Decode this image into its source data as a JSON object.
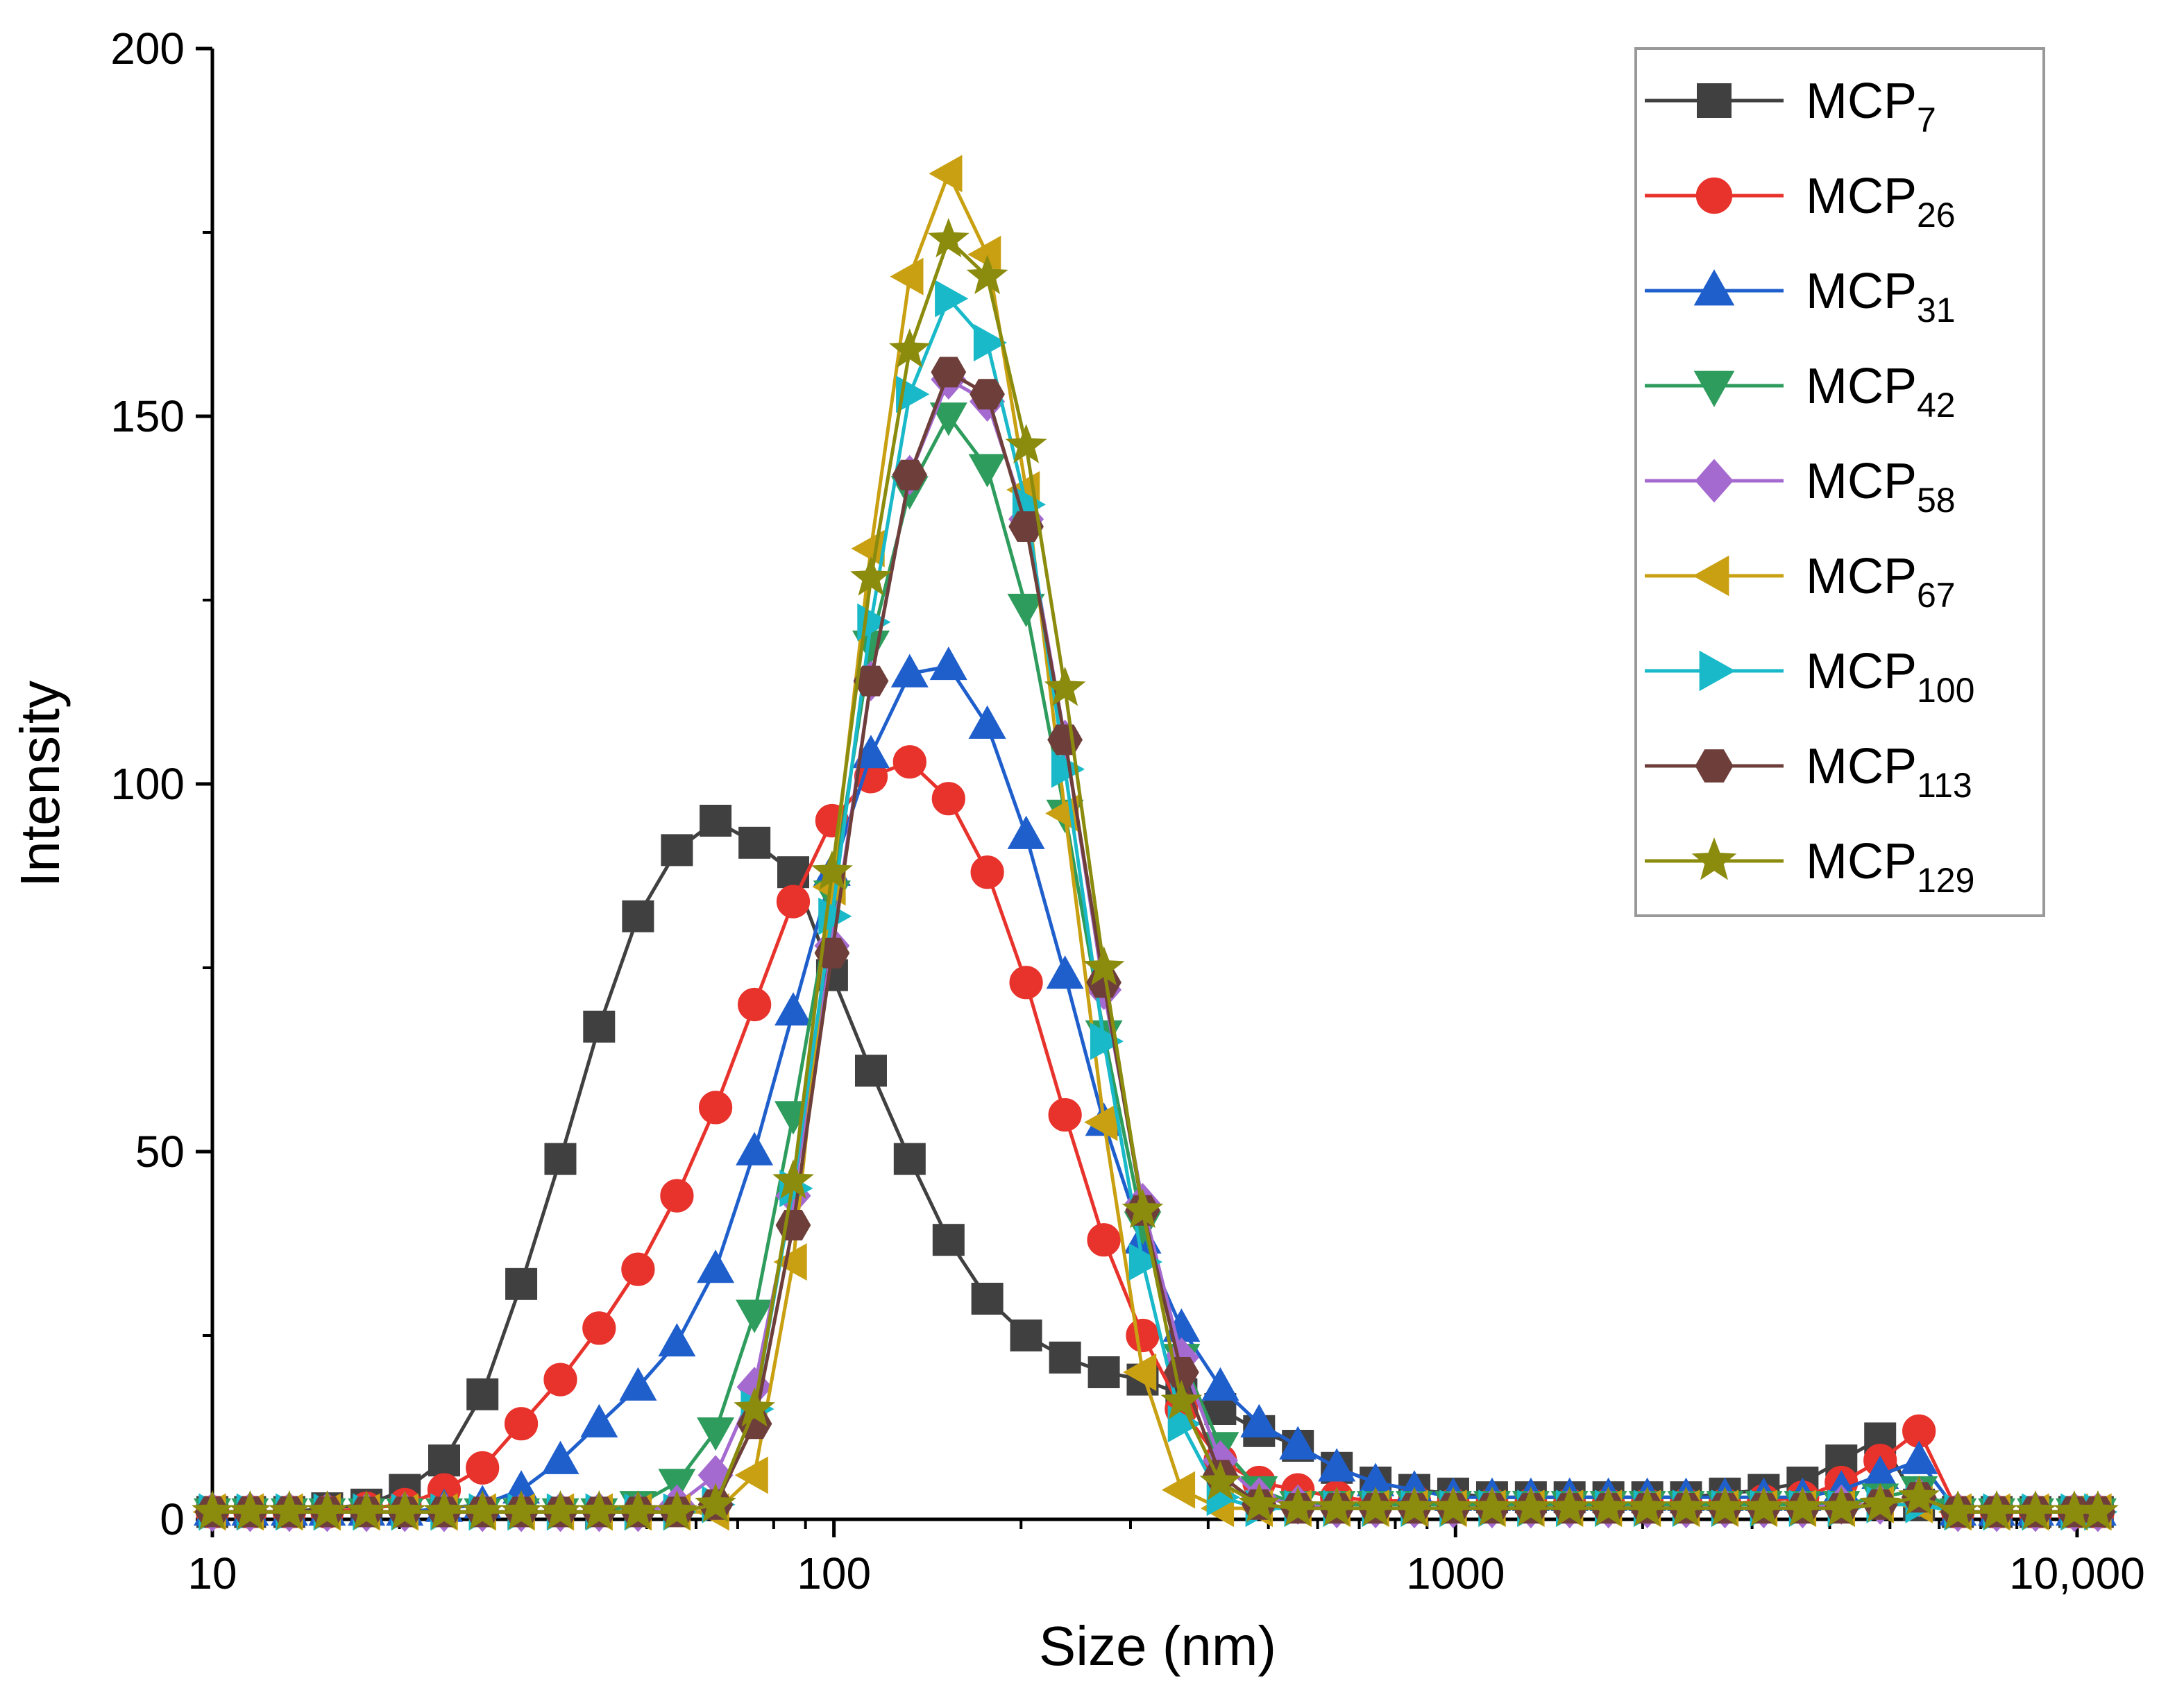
{
  "chart_data": {
    "type": "scatter",
    "title": "",
    "xlabel": "Size (nm)",
    "ylabel": "Intensity",
    "x_scale": "log",
    "xlim": [
      10,
      11000
    ],
    "ylim": [
      0,
      200
    ],
    "grid": false,
    "legend_position": "top-right",
    "x_ticks": [
      {
        "value": 10,
        "label": "10"
      },
      {
        "value": 100,
        "label": "100"
      },
      {
        "value": 1000,
        "label": "1000"
      },
      {
        "value": 10000,
        "label": "10,000"
      }
    ],
    "y_ticks": [
      {
        "value": 0,
        "label": "0"
      },
      {
        "value": 50,
        "label": "50"
      },
      {
        "value": 100,
        "label": "100"
      },
      {
        "value": 150,
        "label": "150"
      },
      {
        "value": 200,
        "label": "200"
      }
    ],
    "series": [
      {
        "name": "MCP",
        "sub": "7",
        "color": "#404040",
        "marker": "square",
        "x": [
          10,
          11.5,
          13.3,
          15.3,
          17.7,
          20.4,
          23.6,
          27.2,
          31.4,
          36.3,
          41.9,
          48.4,
          55.9,
          64.5,
          74.5,
          86,
          99.3,
          114.7,
          132.4,
          152.9,
          176.5,
          203.8,
          235.4,
          271.8,
          313.8,
          362.3,
          418.4,
          483.1,
          557.8,
          644.1,
          743.7,
          858.7,
          991.5,
          1145,
          1322,
          1526,
          1762,
          2035,
          2349,
          2713,
          3132,
          3617,
          4176,
          4822,
          5568,
          6430,
          7424,
          8572,
          9898,
          10800
        ],
        "y": [
          1,
          1,
          1,
          1.5,
          2,
          4,
          8,
          17,
          32,
          49,
          67,
          82,
          91,
          95,
          92,
          88,
          74,
          61,
          49,
          38,
          30,
          25,
          22,
          20,
          19,
          17,
          15,
          12,
          10,
          7,
          5,
          4,
          3.5,
          3,
          3,
          3,
          3,
          3,
          3,
          3.5,
          4,
          5,
          8,
          11,
          2,
          1,
          1,
          1,
          1,
          1
        ]
      },
      {
        "name": "MCP",
        "sub": "26",
        "color": "#e8322c",
        "marker": "circle",
        "x": [
          10,
          11.5,
          13.3,
          15.3,
          17.7,
          20.4,
          23.6,
          27.2,
          31.4,
          36.3,
          41.9,
          48.4,
          55.9,
          64.5,
          74.5,
          86,
          99.3,
          114.7,
          132.4,
          152.9,
          176.5,
          203.8,
          235.4,
          271.8,
          313.8,
          362.3,
          418.4,
          483.1,
          557.8,
          644.1,
          743.7,
          858.7,
          991.5,
          1145,
          1322,
          1526,
          1762,
          2035,
          2349,
          2713,
          3132,
          3617,
          4176,
          4822,
          5568,
          6430,
          7424,
          8572,
          9898,
          10800
        ],
        "y": [
          1,
          1,
          1,
          1,
          1.5,
          2,
          4,
          7,
          13,
          19,
          26,
          34,
          44,
          56,
          70,
          84,
          95,
          101,
          103,
          98,
          88,
          73,
          55,
          38,
          25,
          15,
          8,
          5,
          4,
          3,
          2.5,
          2.5,
          2,
          2,
          2,
          2,
          2,
          2,
          2,
          2,
          2.5,
          3,
          5,
          8,
          12,
          1,
          1,
          1,
          1,
          1
        ]
      },
      {
        "name": "MCP",
        "sub": "31",
        "color": "#1f5fcc",
        "marker": "triangle-up",
        "x": [
          10,
          11.5,
          13.3,
          15.3,
          17.7,
          20.4,
          23.6,
          27.2,
          31.4,
          36.3,
          41.9,
          48.4,
          55.9,
          64.5,
          74.5,
          86,
          99.3,
          114.7,
          132.4,
          152.9,
          176.5,
          203.8,
          235.4,
          271.8,
          313.8,
          362.3,
          418.4,
          483.1,
          557.8,
          644.1,
          743.7,
          858.7,
          991.5,
          1145,
          1322,
          1526,
          1762,
          2035,
          2349,
          2713,
          3132,
          3617,
          4176,
          4822,
          5568,
          6430,
          7424,
          8572,
          9898,
          10800
        ],
        "y": [
          1,
          1,
          1,
          1,
          1,
          1,
          1.5,
          2,
          4,
          8,
          13,
          18,
          24,
          34,
          50,
          69,
          88,
          104,
          115,
          116,
          108,
          93,
          74,
          54,
          38,
          26,
          18,
          13,
          10,
          7,
          5,
          4,
          3,
          3,
          3,
          3,
          3,
          3,
          3,
          3,
          3,
          3,
          4,
          6,
          8,
          1,
          1,
          1,
          1,
          1
        ]
      },
      {
        "name": "MCP",
        "sub": "42",
        "color": "#2e9c5c",
        "marker": "triangle-down",
        "x": [
          10,
          11.5,
          13.3,
          15.3,
          17.7,
          20.4,
          23.6,
          27.2,
          31.4,
          36.3,
          41.9,
          48.4,
          55.9,
          64.5,
          74.5,
          86,
          99.3,
          114.7,
          132.4,
          152.9,
          176.5,
          203.8,
          235.4,
          271.8,
          313.8,
          362.3,
          418.4,
          483.1,
          557.8,
          644.1,
          743.7,
          858.7,
          991.5,
          1145,
          1322,
          1526,
          1762,
          2035,
          2349,
          2713,
          3132,
          3617,
          4176,
          4822,
          5568,
          6430,
          7424,
          8572,
          9898,
          10800
        ],
        "y": [
          1,
          1,
          1,
          1,
          1,
          1,
          1,
          1,
          1,
          1,
          1,
          2,
          5,
          12,
          28,
          55,
          85,
          119,
          140,
          150,
          143,
          124,
          96,
          66,
          40,
          22,
          10,
          4,
          2,
          2,
          2,
          2,
          2,
          2,
          2,
          2,
          2,
          2,
          2,
          2,
          2,
          2,
          2,
          3,
          4,
          1,
          1,
          1,
          1,
          1
        ]
      },
      {
        "name": "MCP",
        "sub": "58",
        "color": "#a56ad0",
        "marker": "diamond",
        "x": [
          10,
          11.5,
          13.3,
          15.3,
          17.7,
          20.4,
          23.6,
          27.2,
          31.4,
          36.3,
          41.9,
          48.4,
          55.9,
          64.5,
          74.5,
          86,
          99.3,
          114.7,
          132.4,
          152.9,
          176.5,
          203.8,
          235.4,
          271.8,
          313.8,
          362.3,
          418.4,
          483.1,
          557.8,
          644.1,
          743.7,
          858.7,
          991.5,
          1145,
          1322,
          1526,
          1762,
          2035,
          2349,
          2713,
          3132,
          3617,
          4176,
          4822,
          5568,
          6430,
          7424,
          8572,
          9898,
          10800
        ],
        "y": [
          1,
          1,
          1,
          1,
          1,
          1,
          1,
          1,
          1,
          1,
          1,
          1,
          2,
          6,
          18,
          44,
          78,
          114,
          142,
          155,
          152,
          136,
          106,
          72,
          43,
          22,
          8,
          3,
          2,
          1.5,
          1.5,
          1.5,
          1.5,
          1.5,
          1.5,
          1.5,
          1.5,
          1.5,
          1.5,
          1.5,
          1.5,
          1.5,
          2,
          2,
          3,
          1,
          1,
          1,
          1,
          1
        ]
      },
      {
        "name": "MCP",
        "sub": "67",
        "color": "#c9a012",
        "marker": "triangle-left",
        "x": [
          10,
          11.5,
          13.3,
          15.3,
          17.7,
          20.4,
          23.6,
          27.2,
          31.4,
          36.3,
          41.9,
          48.4,
          55.9,
          64.5,
          74.5,
          86,
          99.3,
          114.7,
          132.4,
          152.9,
          176.5,
          203.8,
          235.4,
          271.8,
          313.8,
          362.3,
          418.4,
          483.1,
          557.8,
          644.1,
          743.7,
          858.7,
          991.5,
          1145,
          1322,
          1526,
          1762,
          2035,
          2349,
          2713,
          3132,
          3617,
          4176,
          4822,
          5568,
          6430,
          7424,
          8572,
          9898,
          10800
        ],
        "y": [
          1,
          1,
          1,
          1,
          1,
          1,
          1,
          1,
          1,
          1,
          1,
          1,
          1,
          1,
          6,
          35,
          86,
          132,
          169,
          183,
          172,
          140,
          96,
          54,
          20,
          4,
          1.5,
          1.5,
          1.5,
          1.5,
          1.5,
          1.5,
          1.5,
          1.5,
          1.5,
          1.5,
          1.5,
          1.5,
          1.5,
          1.5,
          1.5,
          1.5,
          1.5,
          2,
          2,
          1,
          1,
          1,
          1,
          1
        ]
      },
      {
        "name": "MCP",
        "sub": "100",
        "color": "#19b9c9",
        "marker": "triangle-right",
        "x": [
          10,
          11.5,
          13.3,
          15.3,
          17.7,
          20.4,
          23.6,
          27.2,
          31.4,
          36.3,
          41.9,
          48.4,
          55.9,
          64.5,
          74.5,
          86,
          99.3,
          114.7,
          132.4,
          152.9,
          176.5,
          203.8,
          235.4,
          271.8,
          313.8,
          362.3,
          418.4,
          483.1,
          557.8,
          644.1,
          743.7,
          858.7,
          991.5,
          1145,
          1322,
          1526,
          1762,
          2035,
          2349,
          2713,
          3132,
          3617,
          4176,
          4822,
          5568,
          6430,
          7424,
          8572,
          9898,
          10800
        ],
        "y": [
          1,
          1,
          1,
          1,
          1,
          1,
          1,
          1,
          1,
          1,
          1,
          1,
          1,
          2,
          15,
          45,
          82,
          122,
          153,
          166,
          160,
          138,
          102,
          65,
          35,
          13,
          3,
          1.5,
          1.5,
          1.5,
          1.5,
          1.5,
          1.5,
          1.5,
          1.5,
          1.5,
          1.5,
          1.5,
          1.5,
          1.5,
          1.5,
          1.5,
          1.5,
          2,
          2,
          1,
          1,
          1,
          1,
          1
        ]
      },
      {
        "name": "MCP",
        "sub": "113",
        "color": "#6e3f3a",
        "marker": "hexagon",
        "x": [
          10,
          11.5,
          13.3,
          15.3,
          17.7,
          20.4,
          23.6,
          27.2,
          31.4,
          36.3,
          41.9,
          48.4,
          55.9,
          64.5,
          74.5,
          86,
          99.3,
          114.7,
          132.4,
          152.9,
          176.5,
          203.8,
          235.4,
          271.8,
          313.8,
          362.3,
          418.4,
          483.1,
          557.8,
          644.1,
          743.7,
          858.7,
          991.5,
          1145,
          1322,
          1526,
          1762,
          2035,
          2349,
          2713,
          3132,
          3617,
          4176,
          4822,
          5568,
          6430,
          7424,
          8572,
          9898,
          10800
        ],
        "y": [
          1,
          1,
          1,
          1,
          1,
          1,
          1,
          1,
          1,
          1,
          1,
          1,
          1,
          2,
          13,
          40,
          77,
          114,
          142,
          156,
          153,
          135,
          106,
          73,
          42,
          20,
          6,
          2,
          1.5,
          1.5,
          1.5,
          1.5,
          1.5,
          1.5,
          1.5,
          1.5,
          1.5,
          1.5,
          1.5,
          1.5,
          1.5,
          1.5,
          1.5,
          2,
          3,
          1,
          1,
          1,
          1,
          1
        ]
      },
      {
        "name": "MCP",
        "sub": "129",
        "color": "#8b8b0e",
        "marker": "star",
        "x": [
          10,
          11.5,
          13.3,
          15.3,
          17.7,
          20.4,
          23.6,
          27.2,
          31.4,
          36.3,
          41.9,
          48.4,
          55.9,
          64.5,
          74.5,
          86,
          99.3,
          114.7,
          132.4,
          152.9,
          176.5,
          203.8,
          235.4,
          271.8,
          313.8,
          362.3,
          418.4,
          483.1,
          557.8,
          644.1,
          743.7,
          858.7,
          991.5,
          1145,
          1322,
          1526,
          1762,
          2035,
          2349,
          2713,
          3132,
          3617,
          4176,
          4822,
          5568,
          6430,
          7424,
          8572,
          9898,
          10800
        ],
        "y": [
          1,
          1,
          1,
          1,
          1,
          1,
          1,
          1,
          1,
          1,
          1,
          1,
          1,
          2,
          15,
          46,
          88,
          128,
          159,
          174,
          169,
          146,
          113,
          75,
          42,
          16,
          5,
          2,
          1.5,
          1.5,
          1.5,
          1.5,
          1.5,
          1.5,
          1.5,
          1.5,
          1.5,
          1.5,
          1.5,
          1.5,
          1.5,
          1.5,
          1.5,
          2,
          3,
          1,
          1,
          1,
          1,
          1
        ]
      }
    ]
  }
}
